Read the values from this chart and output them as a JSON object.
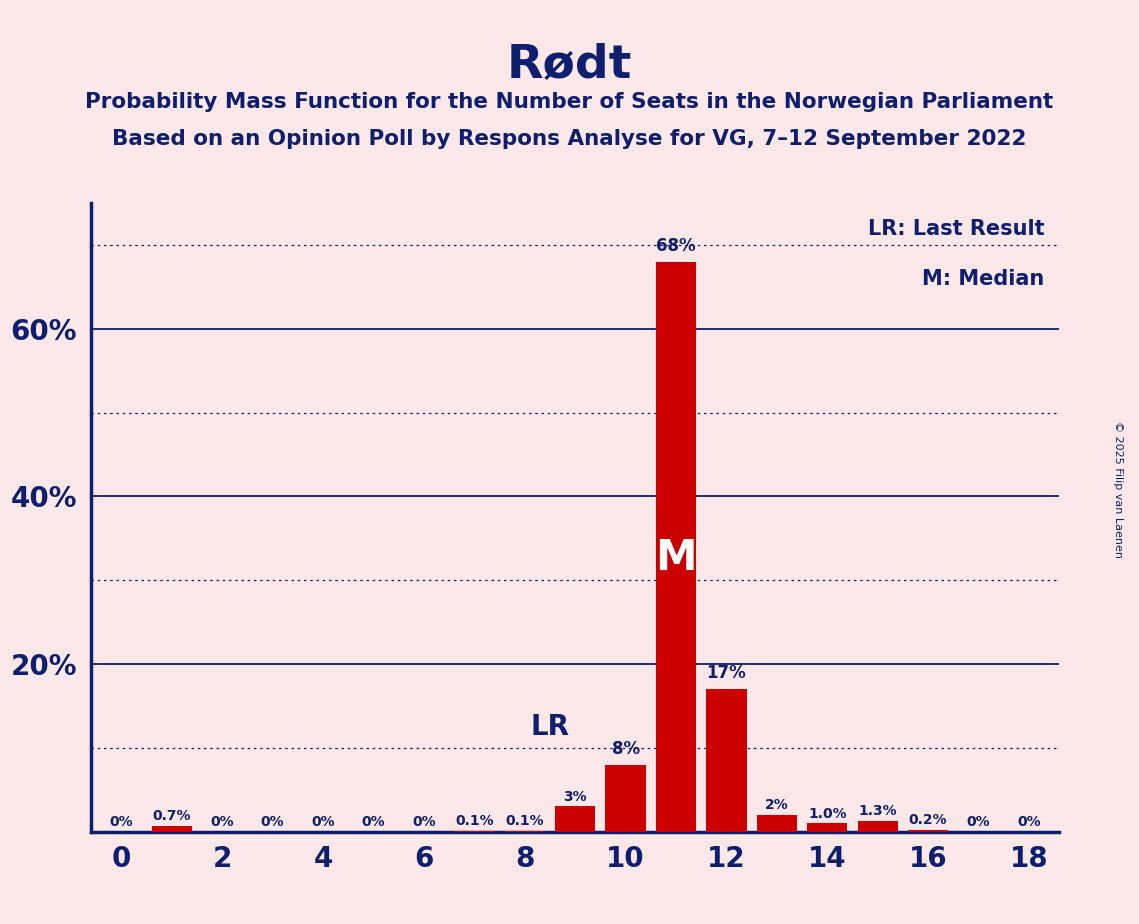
{
  "title": "Rødt",
  "subtitle1": "Probability Mass Function for the Number of Seats in the Norwegian Parliament",
  "subtitle2": "Based on an Opinion Poll by Respons Analyse for VG, 7–12 September 2022",
  "copyright": "© 2025 Filip van Laenen",
  "legend_lr": "LR: Last Result",
  "legend_m": "M: Median",
  "background_color": "#fce8e8",
  "bar_color": "#cc0000",
  "axis_color": "#0d1f6e",
  "text_color": "#0d1f6e",
  "seats": [
    0,
    1,
    2,
    3,
    4,
    5,
    6,
    7,
    8,
    9,
    10,
    11,
    12,
    13,
    14,
    15,
    16,
    17,
    18
  ],
  "probabilities": [
    0.0,
    0.7,
    0.0,
    0.0,
    0.0,
    0.0,
    0.0,
    0.1,
    0.1,
    3.0,
    8.0,
    68.0,
    17.0,
    2.0,
    1.0,
    1.3,
    0.2,
    0.0,
    0.0
  ],
  "bar_labels": [
    "0%",
    "0.7%",
    "0%",
    "0%",
    "0%",
    "0%",
    "0%",
    "0.1%",
    "0.1%",
    "3%",
    "8%",
    "68%",
    "17%",
    "2%",
    "1.0%",
    "1.3%",
    "0.2%",
    "0%",
    "0%"
  ],
  "median_seat": 11,
  "lr_seat": 8,
  "ylim": [
    0,
    75
  ],
  "solid_yticks": [
    20,
    40,
    60
  ],
  "dotted_yticks": [
    10,
    30,
    50,
    70
  ],
  "labeled_yticks": [
    20,
    40,
    60
  ],
  "labeled_ytick_labels": [
    "20%",
    "40%",
    "60%"
  ],
  "xlim": [
    -0.6,
    18.6
  ],
  "xticks": [
    0,
    2,
    4,
    6,
    8,
    10,
    12,
    14,
    16,
    18
  ]
}
